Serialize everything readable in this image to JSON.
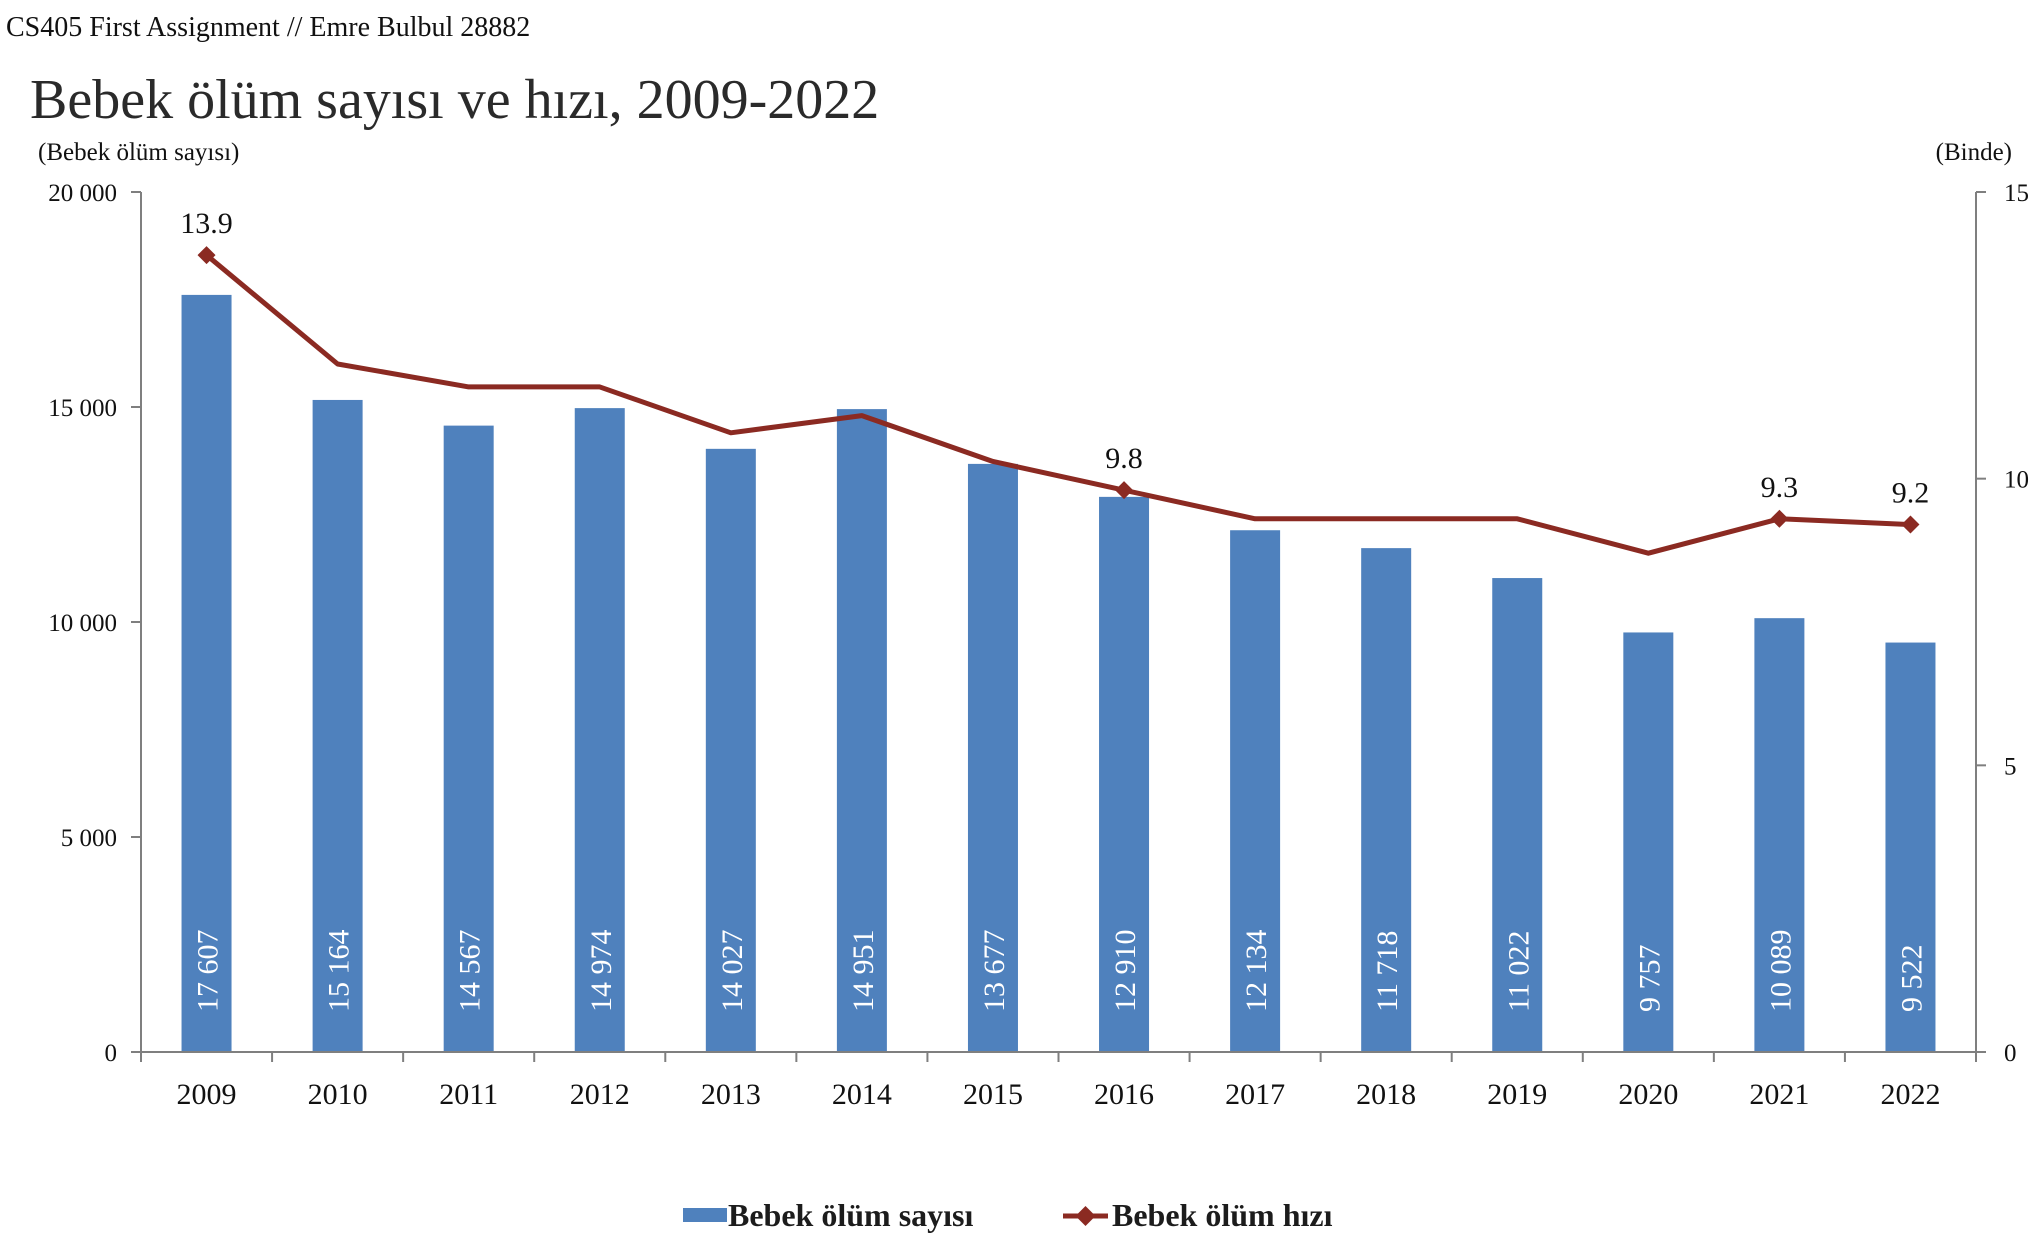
{
  "header": {
    "note": "CS405 First Assignment // Emre Bulbul 28882"
  },
  "chart_data": {
    "type": "bar",
    "title": "Bebek ölüm sayısı ve hızı, 2009-2022",
    "xlabel": "",
    "ylabel_left": "(Bebek ölüm sayısı)",
    "ylabel_right": "(Binde)",
    "categories": [
      "2009",
      "2010",
      "2011",
      "2012",
      "2013",
      "2014",
      "2015",
      "2016",
      "2017",
      "2018",
      "2019",
      "2020",
      "2021",
      "2022"
    ],
    "ylim_left": [
      0,
      20000
    ],
    "yticks_left": [
      0,
      5000,
      10000,
      15000,
      20000
    ],
    "ytick_labels_left": [
      "0",
      "5 000",
      "10 000",
      "15 000",
      "20 000"
    ],
    "ylim_right": [
      0,
      15
    ],
    "yticks_right": [
      0,
      5,
      10,
      15
    ],
    "ytick_labels_right": [
      "0",
      "5",
      "10",
      "15"
    ],
    "grid": false,
    "legend_position": "bottom",
    "series": [
      {
        "name": "Bebek ölüm sayısı",
        "type": "bar",
        "axis": "left",
        "color": "#4f81bd",
        "values": [
          17607,
          15164,
          14567,
          14974,
          14027,
          14951,
          13677,
          12910,
          12134,
          11718,
          11022,
          9757,
          10089,
          9522
        ],
        "value_labels": [
          "17 607",
          "15 164",
          "14 567",
          "14 974",
          "14 027",
          "14 951",
          "13 677",
          "12 910",
          "12 134",
          "11 718",
          "11 022",
          "9 757",
          "10 089",
          "9 522"
        ]
      },
      {
        "name": "Bebek ölüm hızı",
        "type": "line",
        "axis": "right",
        "color": "#8b2a22",
        "marker": "diamond",
        "values": [
          13.9,
          12.0,
          11.6,
          11.6,
          10.8,
          11.1,
          10.3,
          9.8,
          9.3,
          9.3,
          9.3,
          8.7,
          9.3,
          9.2
        ],
        "labeled_points": [
          {
            "category": "2009",
            "label": "13.9"
          },
          {
            "category": "2016",
            "label": "9.8"
          },
          {
            "category": "2021",
            "label": "9.3"
          },
          {
            "category": "2022",
            "label": "9.2"
          }
        ]
      }
    ]
  }
}
